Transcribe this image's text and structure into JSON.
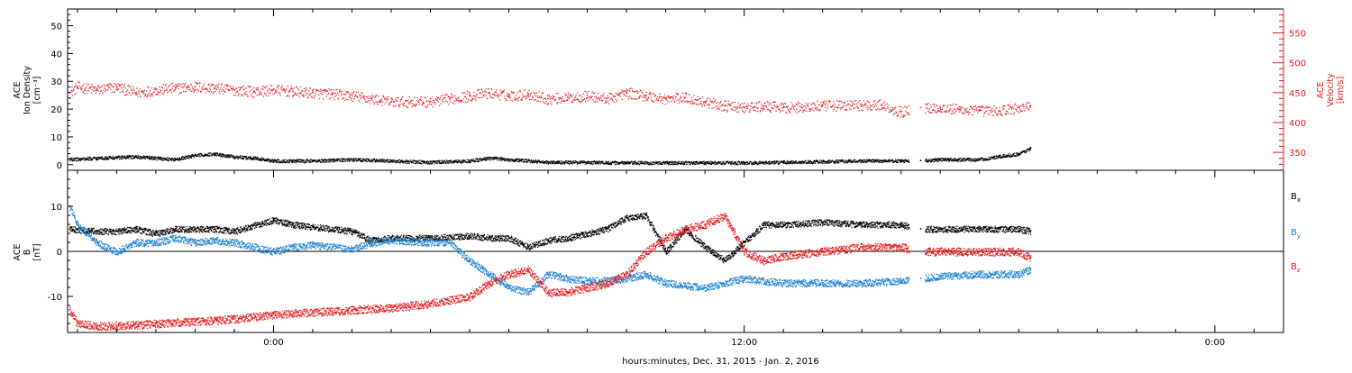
{
  "chart_data": [
    {
      "type": "scatter",
      "panel": "upper",
      "xlabel": "hours:minutes, Dec. 31, 2015 - Jan.  2, 2016",
      "x_ticks": [
        {
          "hour": 0,
          "label": "0:00"
        },
        {
          "hour": 12,
          "label": "12:00"
        },
        {
          "hour": 24,
          "label": "0:00"
        }
      ],
      "xlim_hours": [
        -5.25,
        25.75
      ],
      "left_axis": {
        "label_lines": [
          "ACE",
          "Ion Density",
          "[cm⁻³]"
        ],
        "ylim": [
          -2,
          56
        ],
        "ticks": [
          0,
          10,
          20,
          30,
          40,
          50
        ],
        "color": "#000000"
      },
      "right_axis": {
        "label_lines": [
          "ACE",
          "Velocity",
          "[km/s]"
        ],
        "ylim": [
          320,
          590
        ],
        "ticks": [
          350,
          400,
          450,
          500,
          550
        ],
        "color": "#e8191c"
      },
      "series": [
        {
          "color": "#000000",
          "axis": "left",
          "x_hours": [
            -5.2,
            -4.5,
            -3.5,
            -2.5,
            -2.0,
            -1.5,
            -1.0,
            -0.5,
            0.0,
            1.0,
            2.0,
            3.0,
            4.0,
            5.0,
            5.5,
            6.0,
            7.0,
            8.0,
            9.0,
            10.0,
            11.0,
            12.0,
            13.0,
            14.0,
            15.0,
            16.0,
            16.5,
            17.0,
            18.0,
            18.5,
            19.0,
            19.3
          ],
          "values": [
            2.0,
            2.5,
            3.0,
            2.0,
            3.5,
            4.0,
            3.0,
            2.5,
            1.5,
            1.5,
            2.0,
            1.5,
            1.0,
            1.5,
            2.5,
            2.0,
            1.0,
            1.0,
            0.8,
            0.8,
            0.8,
            0.8,
            1.0,
            1.2,
            1.5,
            1.5,
            1.5,
            2.0,
            2.0,
            3.0,
            4.0,
            6.0
          ]
        },
        {
          "color": "#e8191c",
          "axis": "right",
          "x_hours": [
            -5.2,
            -5.0,
            -4.5,
            -4.0,
            -3.5,
            -3.0,
            -2.5,
            -2.0,
            -1.5,
            -1.0,
            -0.5,
            0.0,
            0.5,
            1.0,
            1.5,
            2.0,
            2.5,
            3.0,
            4.0,
            4.5,
            5.0,
            5.5,
            6.0,
            6.5,
            7.0,
            7.5,
            8.0,
            8.5,
            9.0,
            9.5,
            10.0,
            10.5,
            11.0,
            11.5,
            12.0,
            12.5,
            13.0,
            14.0,
            15.0,
            15.5,
            16.0,
            16.5,
            17.0,
            17.5,
            18.0,
            18.5,
            19.0,
            19.3
          ],
          "values": [
            450,
            460,
            455,
            460,
            450,
            455,
            458,
            460,
            458,
            455,
            452,
            455,
            452,
            450,
            448,
            445,
            440,
            435,
            435,
            440,
            445,
            450,
            445,
            448,
            440,
            442,
            445,
            440,
            450,
            445,
            440,
            442,
            435,
            428,
            425,
            428,
            425,
            428,
            430,
            430,
            418,
            425,
            425,
            422,
            420,
            420,
            425,
            428
          ]
        }
      ]
    },
    {
      "type": "scatter",
      "panel": "lower",
      "xlabel": "hours:minutes, Dec. 31, 2015 - Jan.  2, 2016",
      "xlim_hours": [
        -5.25,
        25.75
      ],
      "left_axis": {
        "label_lines": [
          "ACE",
          "B",
          "[nT]"
        ],
        "ylim": [
          -18,
          18
        ],
        "ticks": [
          -10,
          0,
          10
        ],
        "color": "#000000"
      },
      "zero_line": 0,
      "legend": [
        {
          "label": "B",
          "sub": "x",
          "color": "#000000"
        },
        {
          "label": "B",
          "sub": "y",
          "color": "#1a80d0"
        },
        {
          "label": "B",
          "sub": "z",
          "color": "#e8191c"
        }
      ],
      "series": [
        {
          "color": "#000000",
          "x_hours": [
            -5.2,
            -4.5,
            -4.0,
            -3.5,
            -3.0,
            -2.5,
            -2.0,
            -1.5,
            -1.0,
            0.0,
            0.5,
            1.0,
            2.0,
            2.5,
            3.0,
            4.0,
            5.0,
            5.5,
            6.0,
            6.5,
            7.0,
            7.5,
            8.0,
            8.5,
            9.0,
            9.5,
            10.0,
            10.5,
            11.0,
            11.5,
            12.0,
            12.5,
            13.0,
            14.0,
            15.0,
            16.0,
            16.5,
            17.0,
            18.0,
            19.0,
            19.3
          ],
          "values": [
            5,
            4.5,
            4.5,
            5,
            4,
            5,
            5,
            5,
            4.5,
            7,
            6,
            5.5,
            4.5,
            2.5,
            3,
            3,
            3.5,
            3,
            3,
            1,
            2.5,
            3,
            4,
            5,
            7.5,
            8,
            0,
            5,
            1,
            -2,
            2,
            6,
            6,
            6.5,
            6,
            6,
            5,
            5,
            5,
            5,
            4.5
          ]
        },
        {
          "color": "#1a80d0",
          "x_hours": [
            -5.2,
            -5.0,
            -4.5,
            -4.0,
            -3.5,
            -3.0,
            -2.5,
            -2.0,
            -1.5,
            -1.0,
            0.0,
            0.5,
            1.0,
            1.5,
            2.0,
            2.5,
            3.0,
            4.0,
            4.5,
            5.0,
            5.5,
            6.0,
            6.5,
            7.0,
            7.5,
            8.0,
            8.5,
            9.0,
            9.5,
            10.0,
            11.0,
            12.0,
            13.0,
            14.0,
            15.0,
            16.0,
            16.5,
            17.0,
            18.0,
            19.0,
            19.3
          ],
          "values": [
            10,
            6,
            2,
            0,
            2,
            2,
            3,
            2,
            2.5,
            2,
            0,
            1,
            1.5,
            1,
            0.5,
            2,
            2.5,
            2,
            2,
            -2,
            -5,
            -8,
            -9,
            -5,
            -6,
            -6.5,
            -6.5,
            -6,
            -5,
            -7,
            -8,
            -6,
            -7,
            -7,
            -7,
            -6.5,
            -6,
            -5.5,
            -5,
            -5,
            -4
          ]
        },
        {
          "color": "#e8191c",
          "x_hours": [
            -5.2,
            -5.0,
            -4.5,
            -4.0,
            -3.0,
            -2.0,
            -1.0,
            0.0,
            1.0,
            2.0,
            3.0,
            4.0,
            5.0,
            5.5,
            6.0,
            6.5,
            7.0,
            7.5,
            8.0,
            8.5,
            9.0,
            9.5,
            10.0,
            10.5,
            11.0,
            11.5,
            12.0,
            12.5,
            13.0,
            14.0,
            15.0,
            16.0,
            16.5,
            17.0,
            18.0,
            19.0,
            19.3
          ],
          "values": [
            -13,
            -16,
            -16.5,
            -16.5,
            -16,
            -15.5,
            -15,
            -14,
            -13.5,
            -13,
            -12.5,
            -11.5,
            -10,
            -7,
            -5,
            -4,
            -9,
            -9,
            -8,
            -7,
            -5,
            0,
            3,
            5,
            6,
            8,
            0,
            -2,
            -1,
            0,
            1,
            1,
            0,
            0,
            0,
            0,
            -1.5
          ]
        }
      ]
    }
  ]
}
